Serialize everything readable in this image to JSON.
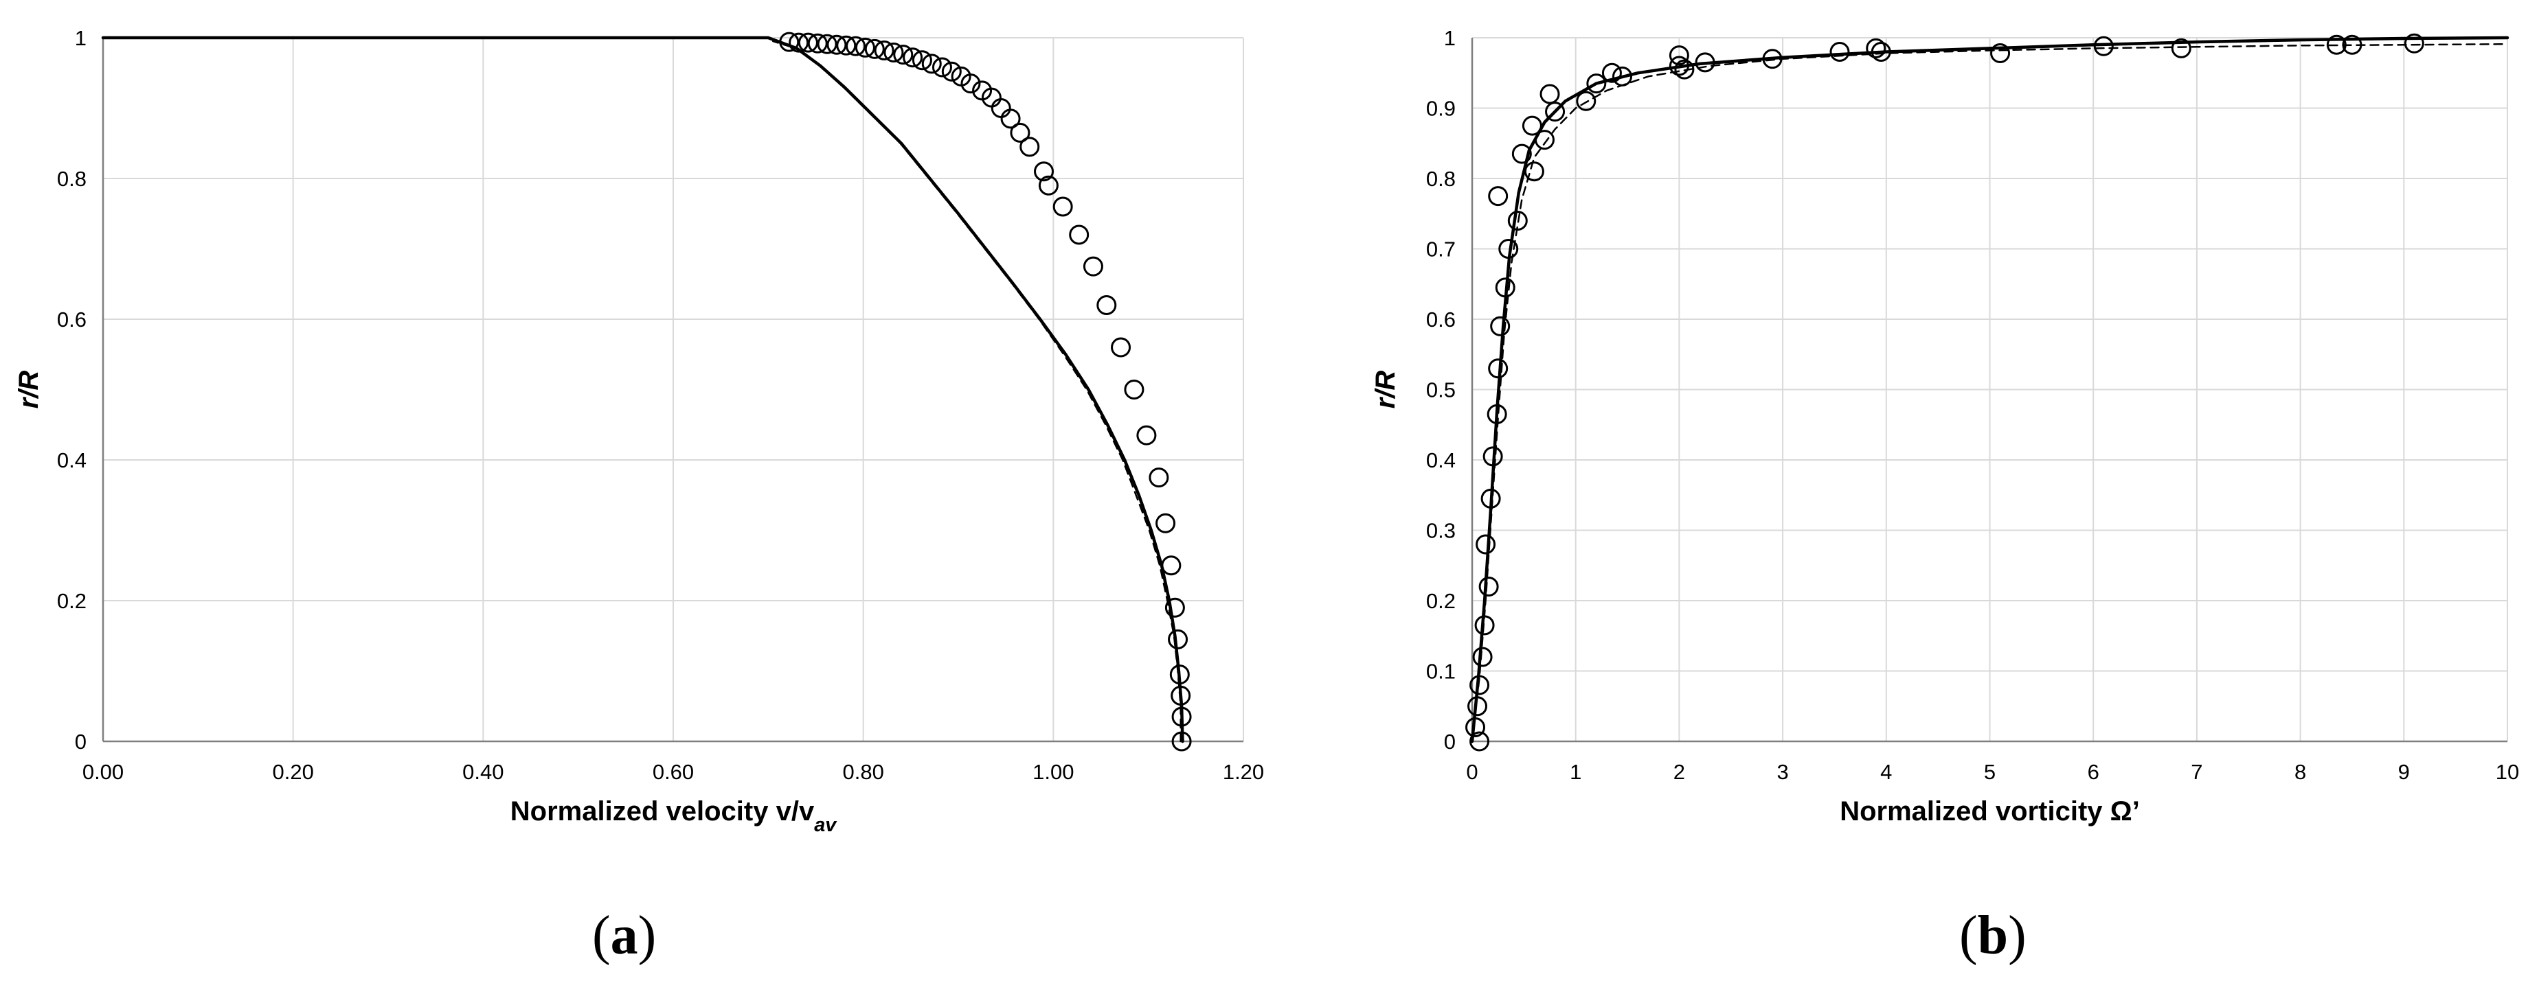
{
  "panels": [
    {
      "caption_letter": "a",
      "chart_data": {
        "type": "line",
        "xlabel": "Normalized velocity v/v",
        "xlabel_subscript": "av",
        "ylabel": "r/R",
        "xlim": [
          0,
          1.2
        ],
        "ylim": [
          0,
          1
        ],
        "xticks": [
          "0.00",
          "0.20",
          "0.40",
          "0.60",
          "0.80",
          "1.00",
          "1.20"
        ],
        "yticks": [
          "0",
          "0.2",
          "0.4",
          "0.6",
          "0.8",
          "1"
        ],
        "grid": true,
        "series": [
          {
            "style": "markers",
            "x": [
              1.135,
              1.135,
              1.134,
              1.133,
              1.131,
              1.128,
              1.124,
              1.118,
              1.111,
              1.098,
              1.085,
              1.071,
              1.056,
              1.042,
              1.027,
              1.01,
              0.995,
              0.99,
              0.975,
              0.965,
              0.955,
              0.945,
              0.935,
              0.925,
              0.913,
              0.903,
              0.893,
              0.883,
              0.872,
              0.862,
              0.852,
              0.842,
              0.832,
              0.822,
              0.812,
              0.802,
              0.792,
              0.782,
              0.772,
              0.762,
              0.752,
              0.742,
              0.732,
              0.722
            ],
            "y": [
              0.0,
              0.035,
              0.065,
              0.095,
              0.145,
              0.19,
              0.25,
              0.31,
              0.375,
              0.435,
              0.5,
              0.56,
              0.62,
              0.675,
              0.72,
              0.76,
              0.79,
              0.81,
              0.845,
              0.865,
              0.885,
              0.9,
              0.915,
              0.925,
              0.935,
              0.945,
              0.952,
              0.958,
              0.963,
              0.968,
              0.972,
              0.976,
              0.979,
              0.982,
              0.984,
              0.986,
              0.988,
              0.989,
              0.99,
              0.991,
              0.992,
              0.993,
              0.993,
              0.994
            ]
          },
          {
            "style": "solid",
            "x": [
              1.136,
              1.135,
              1.132,
              1.128,
              1.122,
              1.114,
              1.103,
              1.09,
              1.075,
              1.057,
              1.037,
              1.013,
              0.986,
              0.958,
              0.929,
              0.9,
              0.87,
              0.84,
              0.81,
              0.78,
              0.755,
              0.73,
              0.7,
              0.0
            ],
            "y": [
              0.0,
              0.05,
              0.1,
              0.15,
              0.2,
              0.25,
              0.3,
              0.35,
              0.4,
              0.45,
              0.5,
              0.55,
              0.6,
              0.65,
              0.7,
              0.75,
              0.8,
              0.85,
              0.89,
              0.93,
              0.96,
              0.985,
              1.0,
              1.0
            ]
          },
          {
            "style": "dashed",
            "x": [
              1.134,
              1.134,
              1.131,
              1.127,
              1.12,
              1.112,
              1.101,
              1.087,
              1.073,
              1.055,
              1.035,
              1.011,
              0.985,
              0.957,
              0.928,
              0.899,
              0.869,
              0.839,
              0.809,
              0.779,
              0.754,
              0.729,
              0.705
            ],
            "y": [
              0.0,
              0.05,
              0.1,
              0.15,
              0.2,
              0.25,
              0.3,
              0.35,
              0.4,
              0.45,
              0.5,
              0.55,
              0.6,
              0.65,
              0.7,
              0.75,
              0.8,
              0.85,
              0.89,
              0.93,
              0.96,
              0.985,
              0.995
            ]
          }
        ]
      }
    },
    {
      "caption_letter": "b",
      "chart_data": {
        "type": "line",
        "xlabel": "Normalized vorticity Ω’",
        "ylabel": "r/R",
        "xlim": [
          0,
          10
        ],
        "ylim": [
          0,
          1
        ],
        "xticks": [
          "0",
          "1",
          "2",
          "3",
          "4",
          "5",
          "6",
          "7",
          "8",
          "9",
          "10"
        ],
        "yticks": [
          "0",
          "0.1",
          "0.2",
          "0.3",
          "0.4",
          "0.5",
          "0.6",
          "0.7",
          "0.8",
          "0.9",
          "1"
        ],
        "grid": true,
        "series": [
          {
            "style": "markers",
            "x": [
              0.03,
              0.05,
              0.07,
              0.07,
              0.1,
              0.12,
              0.13,
              0.16,
              0.18,
              0.2,
              0.24,
              0.25,
              0.27,
              0.32,
              0.35,
              0.44,
              0.48,
              0.58,
              0.6,
              0.7,
              0.25,
              0.75,
              0.8,
              1.1,
              1.2,
              1.35,
              1.45,
              2.0,
              2.05,
              2.25,
              2.9,
              2.0,
              3.55,
              3.9,
              3.95,
              5.1,
              6.1,
              6.85,
              8.35,
              8.5,
              9.1
            ],
            "y": [
              0.02,
              0.05,
              0.08,
              0.0,
              0.12,
              0.165,
              0.28,
              0.22,
              0.345,
              0.405,
              0.465,
              0.53,
              0.59,
              0.645,
              0.7,
              0.74,
              0.835,
              0.875,
              0.81,
              0.855,
              0.775,
              0.92,
              0.895,
              0.91,
              0.935,
              0.95,
              0.945,
              0.96,
              0.955,
              0.965,
              0.97,
              0.975,
              0.98,
              0.985,
              0.98,
              0.978,
              0.988,
              0.985,
              0.99,
              0.99,
              0.992
            ]
          },
          {
            "style": "solid",
            "x": [
              0.0,
              0.06,
              0.12,
              0.18,
              0.24,
              0.3,
              0.36,
              0.45,
              0.55,
              0.7,
              0.9,
              1.2,
              1.6,
              2.2,
              3.0,
              4.0,
              5.0,
              6.0,
              7.0,
              8.0,
              9.0,
              10.0
            ],
            "y": [
              0.0,
              0.09,
              0.2,
              0.33,
              0.47,
              0.59,
              0.69,
              0.78,
              0.84,
              0.88,
              0.91,
              0.935,
              0.95,
              0.963,
              0.972,
              0.98,
              0.985,
              0.99,
              0.994,
              0.997,
              0.999,
              1.0
            ]
          },
          {
            "style": "dashed",
            "x": [
              0.0,
              0.07,
              0.13,
              0.19,
              0.25,
              0.31,
              0.38,
              0.48,
              0.6,
              0.8,
              1.0,
              1.3,
              1.7,
              2.3,
              3.0,
              4.0,
              5.0,
              6.0,
              7.0,
              8.0,
              9.0,
              10.0
            ],
            "y": [
              0.0,
              0.09,
              0.2,
              0.33,
              0.46,
              0.58,
              0.68,
              0.77,
              0.83,
              0.87,
              0.9,
              0.925,
              0.945,
              0.96,
              0.97,
              0.978,
              0.982,
              0.985,
              0.987,
              0.989,
              0.99,
              0.991
            ]
          }
        ]
      }
    }
  ]
}
